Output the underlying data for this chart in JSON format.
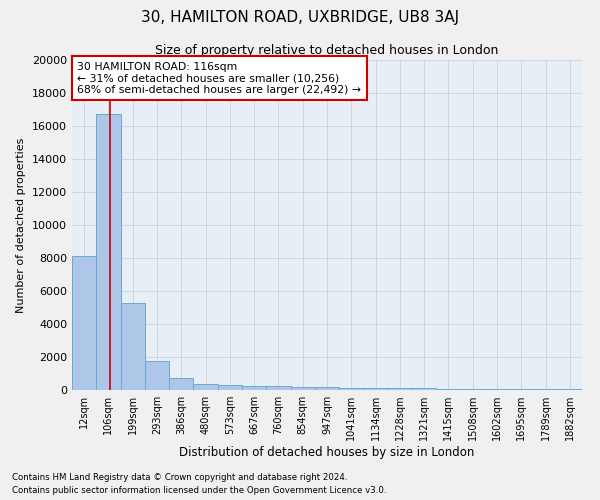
{
  "title": "30, HAMILTON ROAD, UXBRIDGE, UB8 3AJ",
  "subtitle": "Size of property relative to detached houses in London",
  "xlabel": "Distribution of detached houses by size in London",
  "ylabel": "Number of detached properties",
  "bar_labels": [
    "12sqm",
    "106sqm",
    "199sqm",
    "293sqm",
    "386sqm",
    "480sqm",
    "573sqm",
    "667sqm",
    "760sqm",
    "854sqm",
    "947sqm",
    "1041sqm",
    "1134sqm",
    "1228sqm",
    "1321sqm",
    "1415sqm",
    "1508sqm",
    "1602sqm",
    "1695sqm",
    "1789sqm",
    "1882sqm"
  ],
  "bar_values": [
    8100,
    16700,
    5300,
    1750,
    700,
    380,
    290,
    240,
    220,
    180,
    160,
    140,
    120,
    110,
    100,
    90,
    80,
    70,
    60,
    50,
    40
  ],
  "bar_color": "#aec6e8",
  "bar_edge_color": "#6aaad4",
  "vline_x": 1.05,
  "vline_color": "#cc0000",
  "annotation_text": "30 HAMILTON ROAD: 116sqm\n← 31% of detached houses are smaller (10,256)\n68% of semi-detached houses are larger (22,492) →",
  "annotation_box_color": "#ffffff",
  "annotation_box_edge": "#cc0000",
  "ylim": [
    0,
    20000
  ],
  "yticks": [
    0,
    2000,
    4000,
    6000,
    8000,
    10000,
    12000,
    14000,
    16000,
    18000,
    20000
  ],
  "grid_color": "#cdd5e0",
  "bg_color": "#e8eef5",
  "fig_bg_color": "#f0f0f0",
  "footer_line1": "Contains HM Land Registry data © Crown copyright and database right 2024.",
  "footer_line2": "Contains public sector information licensed under the Open Government Licence v3.0."
}
